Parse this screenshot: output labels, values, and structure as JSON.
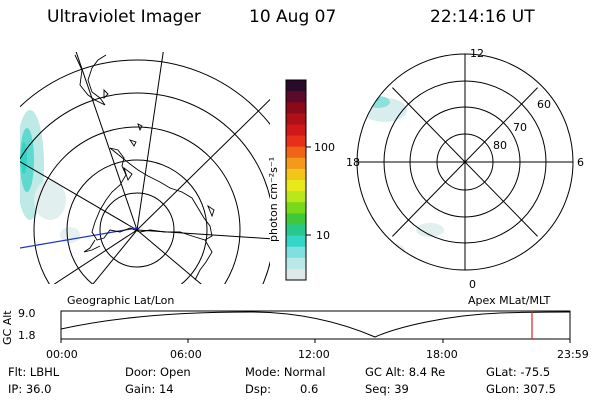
{
  "header": {
    "title": "Ultraviolet Imager",
    "date": "10 Aug 07",
    "time": "22:14:16 UT"
  },
  "colorbar": {
    "unit_label": "photon cm⁻²s⁻¹",
    "ticks": [
      "100",
      "10"
    ],
    "colors": [
      "#2a0a2a",
      "#5a0a2a",
      "#8a0a1a",
      "#b0101a",
      "#d01818",
      "#e83018",
      "#f06418",
      "#f39a1a",
      "#f3c41a",
      "#e8e81a",
      "#b8e81a",
      "#7ad81a",
      "#3ec83a",
      "#27c88a",
      "#33d6c8",
      "#7fe0e0",
      "#b8e8e8",
      "#dde8e8"
    ]
  },
  "geo_panel": {
    "label": "Geographic Lat/Lon"
  },
  "mag_panel": {
    "label": "Apex MLat/MLT",
    "mlt_ticks": {
      "top": "12",
      "right": "6",
      "bottom": "0",
      "left": "18"
    },
    "lat_ticks": [
      "60",
      "70",
      "80"
    ]
  },
  "altitude_strip": {
    "axis_label": "GC Alt",
    "ymax": "9.0",
    "ymin": "1.8",
    "time_ticks": [
      "00:00",
      "06:00",
      "12:00",
      "18:00",
      "23:59"
    ],
    "marker_color": "#e02020"
  },
  "status": {
    "row1": {
      "flt": "Flt: LBHL",
      "door": "Door: Open",
      "mode": "Mode: Normal",
      "gcalt": "GC Alt: 8.4 Re",
      "glat": "GLat: -75.5"
    },
    "row2": {
      "ip": "IP: 36.0",
      "gain": "Gain: 14",
      "dsp_label": "Dsp:",
      "dsp_value": "0.6",
      "seq": "Seq: 39",
      "glon": "GLon: 307.5"
    }
  }
}
